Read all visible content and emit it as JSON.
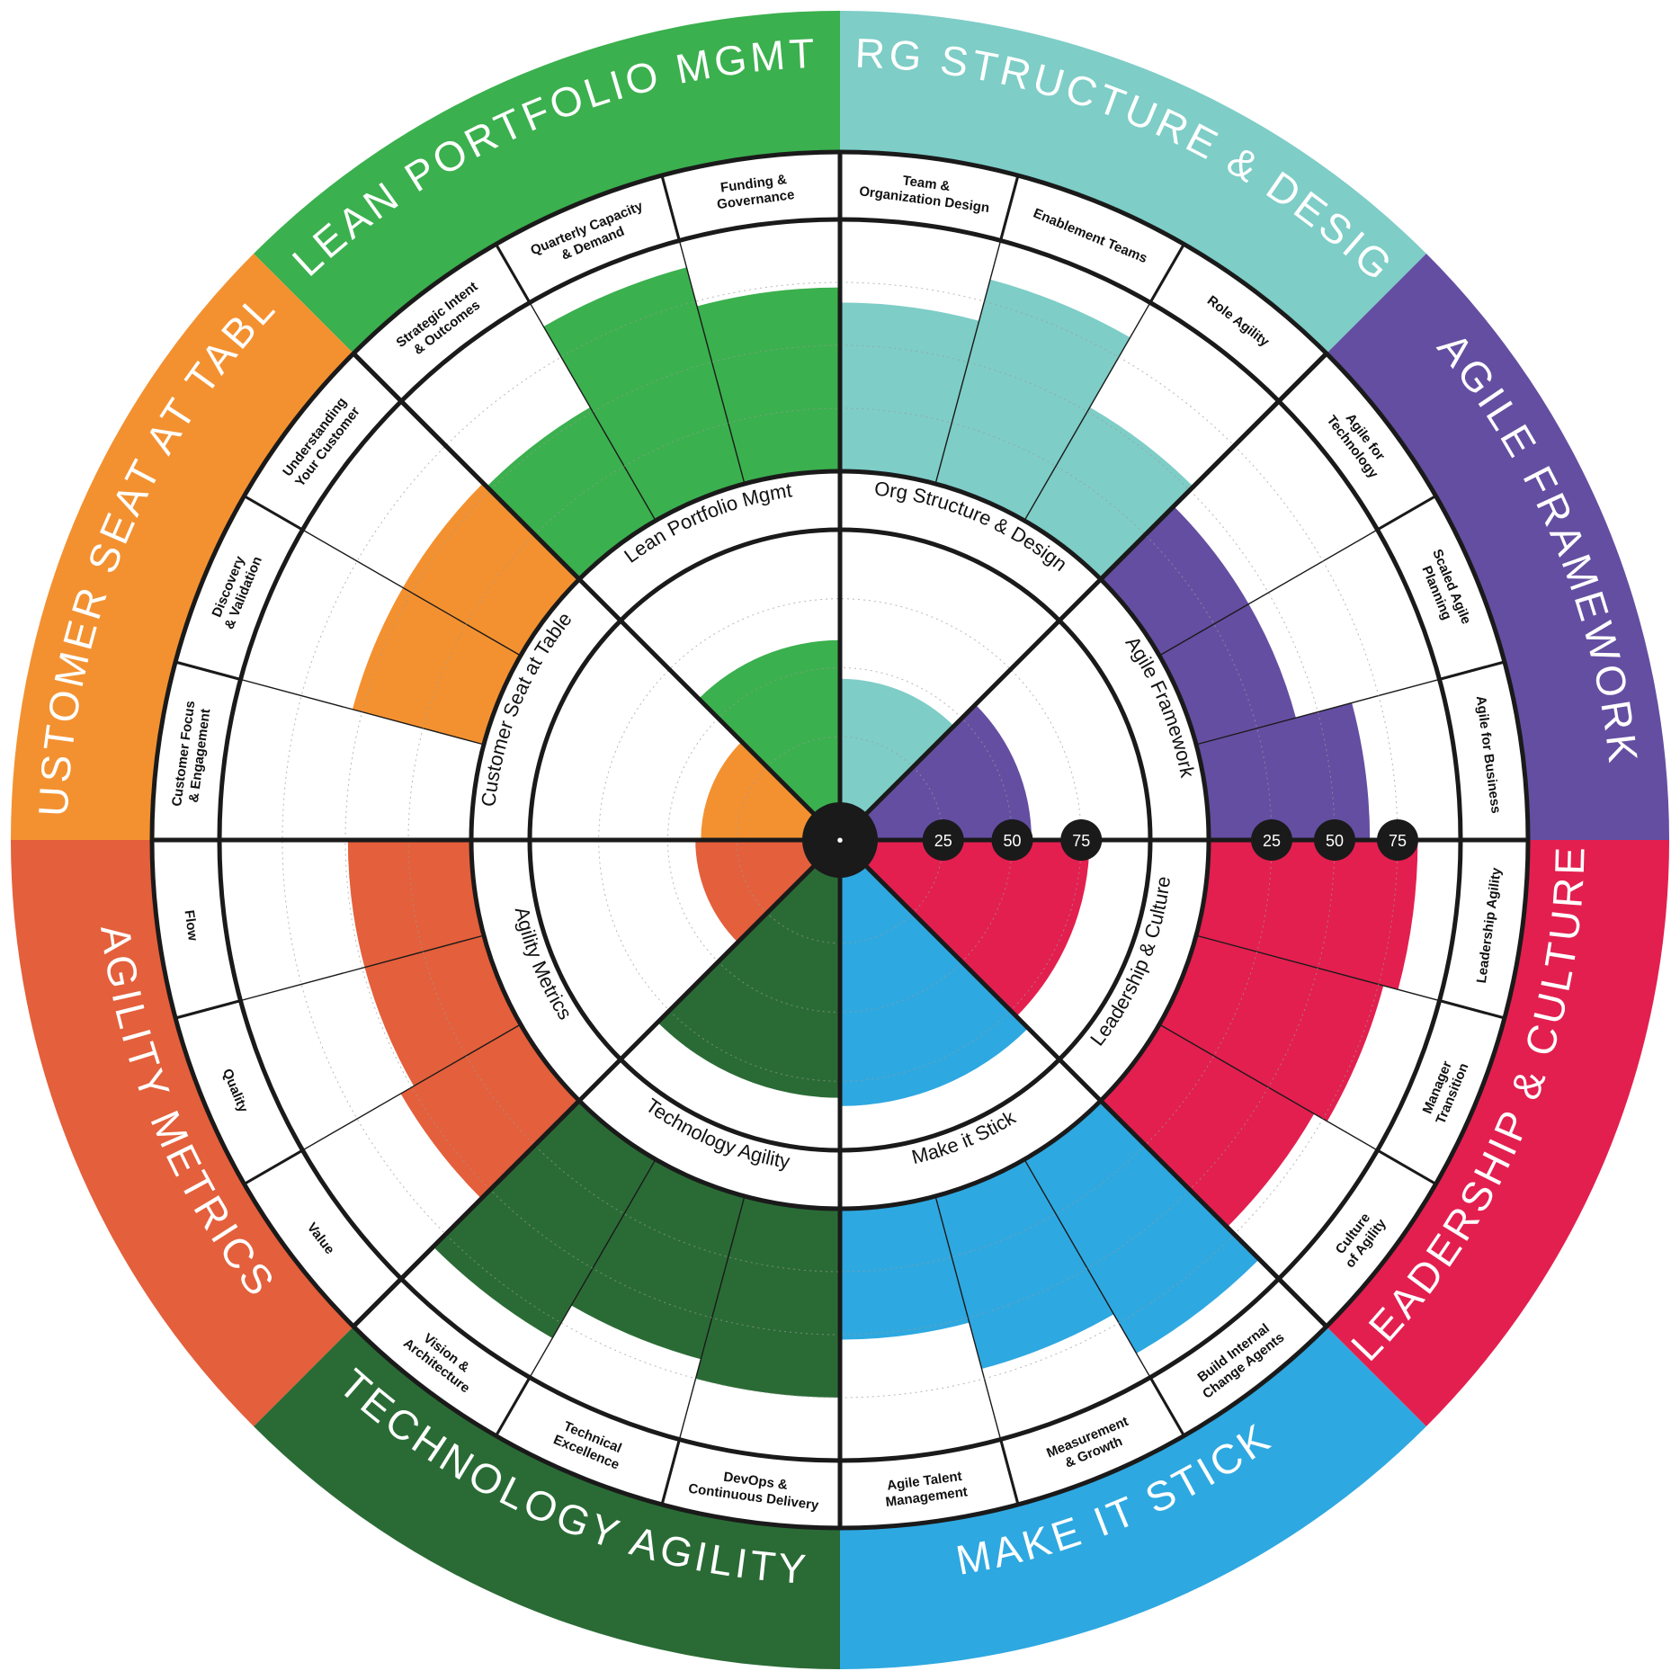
{
  "chart_data": {
    "type": "radial-bar",
    "scale_ticks": [
      25,
      50,
      75
    ],
    "range": [
      0,
      100
    ],
    "center_label": "•",
    "segments": [
      {
        "name": "ORG STRUCTURE & DESIGN",
        "inner_name": "Org Structure & Design",
        "color": "#7ecdc7",
        "overall": 46,
        "categories": [
          {
            "label": "Team & Organization Design",
            "lines": [
              "Team &",
              "Organization Design"
            ],
            "value": 67
          },
          {
            "label": "Enablement Teams",
            "lines": [
              "Enablement Teams"
            ],
            "value": 84
          },
          {
            "label": "Role Agility",
            "lines": [
              "Role Agility"
            ],
            "value": 52
          }
        ]
      },
      {
        "name": "LEAN PORTFOLIO MGMT",
        "inner_name": "Lean Portfolio Mgmt",
        "color": "#3bb04e",
        "overall": 60,
        "categories": [
          {
            "label": "Strategic Intent & Outcomes",
            "lines": [
              "Strategic Intent",
              "& Outcomes"
            ],
            "value": 52
          },
          {
            "label": "Quarterly Capacity & Demand",
            "lines": [
              "Quarterly Capacity",
              "& Demand"
            ],
            "value": 89
          },
          {
            "label": "Funding & Governance",
            "lines": [
              "Funding &",
              "Governance"
            ],
            "value": 73
          }
        ]
      },
      {
        "name": "CUSTOMER SEAT AT TABLE",
        "inner_name": "Customer Seat at Table",
        "color": "#f39130",
        "overall": 38,
        "categories": [
          {
            "label": "Customer Focus & Engagement",
            "lines": [
              "Customer Focus",
              "& Engagement"
            ],
            "value": 0
          },
          {
            "label": "Discovery & Validation",
            "lines": [
              "Discovery",
              "& Validation"
            ],
            "value": 54
          },
          {
            "label": "Understanding Your Customer",
            "lines": [
              "Understanding",
              "Your Customer"
            ],
            "value": 54
          }
        ]
      },
      {
        "name": "AGILITY METRICS",
        "inner_name": "Agility Metrics",
        "color": "#e45f3b",
        "overall": 40,
        "categories": [
          {
            "label": "Value",
            "lines": [
              "Value"
            ],
            "value": 55
          },
          {
            "label": "Quality",
            "lines": [
              "Quality"
            ],
            "value": 49
          },
          {
            "label": "Flow",
            "lines": [
              "Flow"
            ],
            "value": 49
          }
        ]
      },
      {
        "name": "TECHNOLOGY AGILITY",
        "inner_name": "Technology Agility",
        "color": "#2a6b35",
        "overall": 81,
        "categories": [
          {
            "label": "DevOps & Continuous Delivery",
            "lines": [
              "DevOps &",
              "Continuous Delivery"
            ],
            "value": 75
          },
          {
            "label": "Technical Excellence",
            "lines": [
              "Technical",
              "Excellence"
            ],
            "value": 67
          },
          {
            "label": "Vision & Architecture",
            "lines": [
              "Vision &",
              "Architecture"
            ],
            "value": 82
          }
        ]
      },
      {
        "name": "MAKE IT STICK",
        "inner_name": "Make it Stick",
        "color": "#2ea8e0",
        "overall": 84,
        "categories": [
          {
            "label": "Build Internal Change Agents",
            "lines": [
              "Build Internal",
              "Change Agents"
            ],
            "value": 89
          },
          {
            "label": "Measurement & Growth",
            "lines": [
              "Measurement",
              "& Growth"
            ],
            "value": 71
          },
          {
            "label": "Agile Talent Management",
            "lines": [
              "Agile Talent",
              "Management"
            ],
            "value": 52
          }
        ]
      },
      {
        "name": "LEADERSHIP & CULTURE",
        "inner_name": "Leadership & Culture",
        "color": "#e31f4f",
        "overall": 78,
        "categories": [
          {
            "label": "Leadership Agility",
            "lines": [
              "Leadership Agility"
            ],
            "value": 83
          },
          {
            "label": "Manager Transition",
            "lines": [
              "Manager",
              "Transition"
            ],
            "value": 77
          },
          {
            "label": "Culture of Agility",
            "lines": [
              "Culture",
              "of Agility"
            ],
            "value": 71
          }
        ]
      },
      {
        "name": "AGILE FRAMEWORK",
        "inner_name": "Agile Framework",
        "color": "#644ea1",
        "overall": 57,
        "categories": [
          {
            "label": "Agile for Technology",
            "lines": [
              "Agile for",
              "Technology"
            ],
            "value": 41
          },
          {
            "label": "Scaled Agile Planning",
            "lines": [
              "Scaled Agile",
              "Planning"
            ],
            "value": 41
          },
          {
            "label": "Agile for Business",
            "lines": [
              "Agile for Business"
            ],
            "value": 64
          }
        ]
      }
    ]
  }
}
